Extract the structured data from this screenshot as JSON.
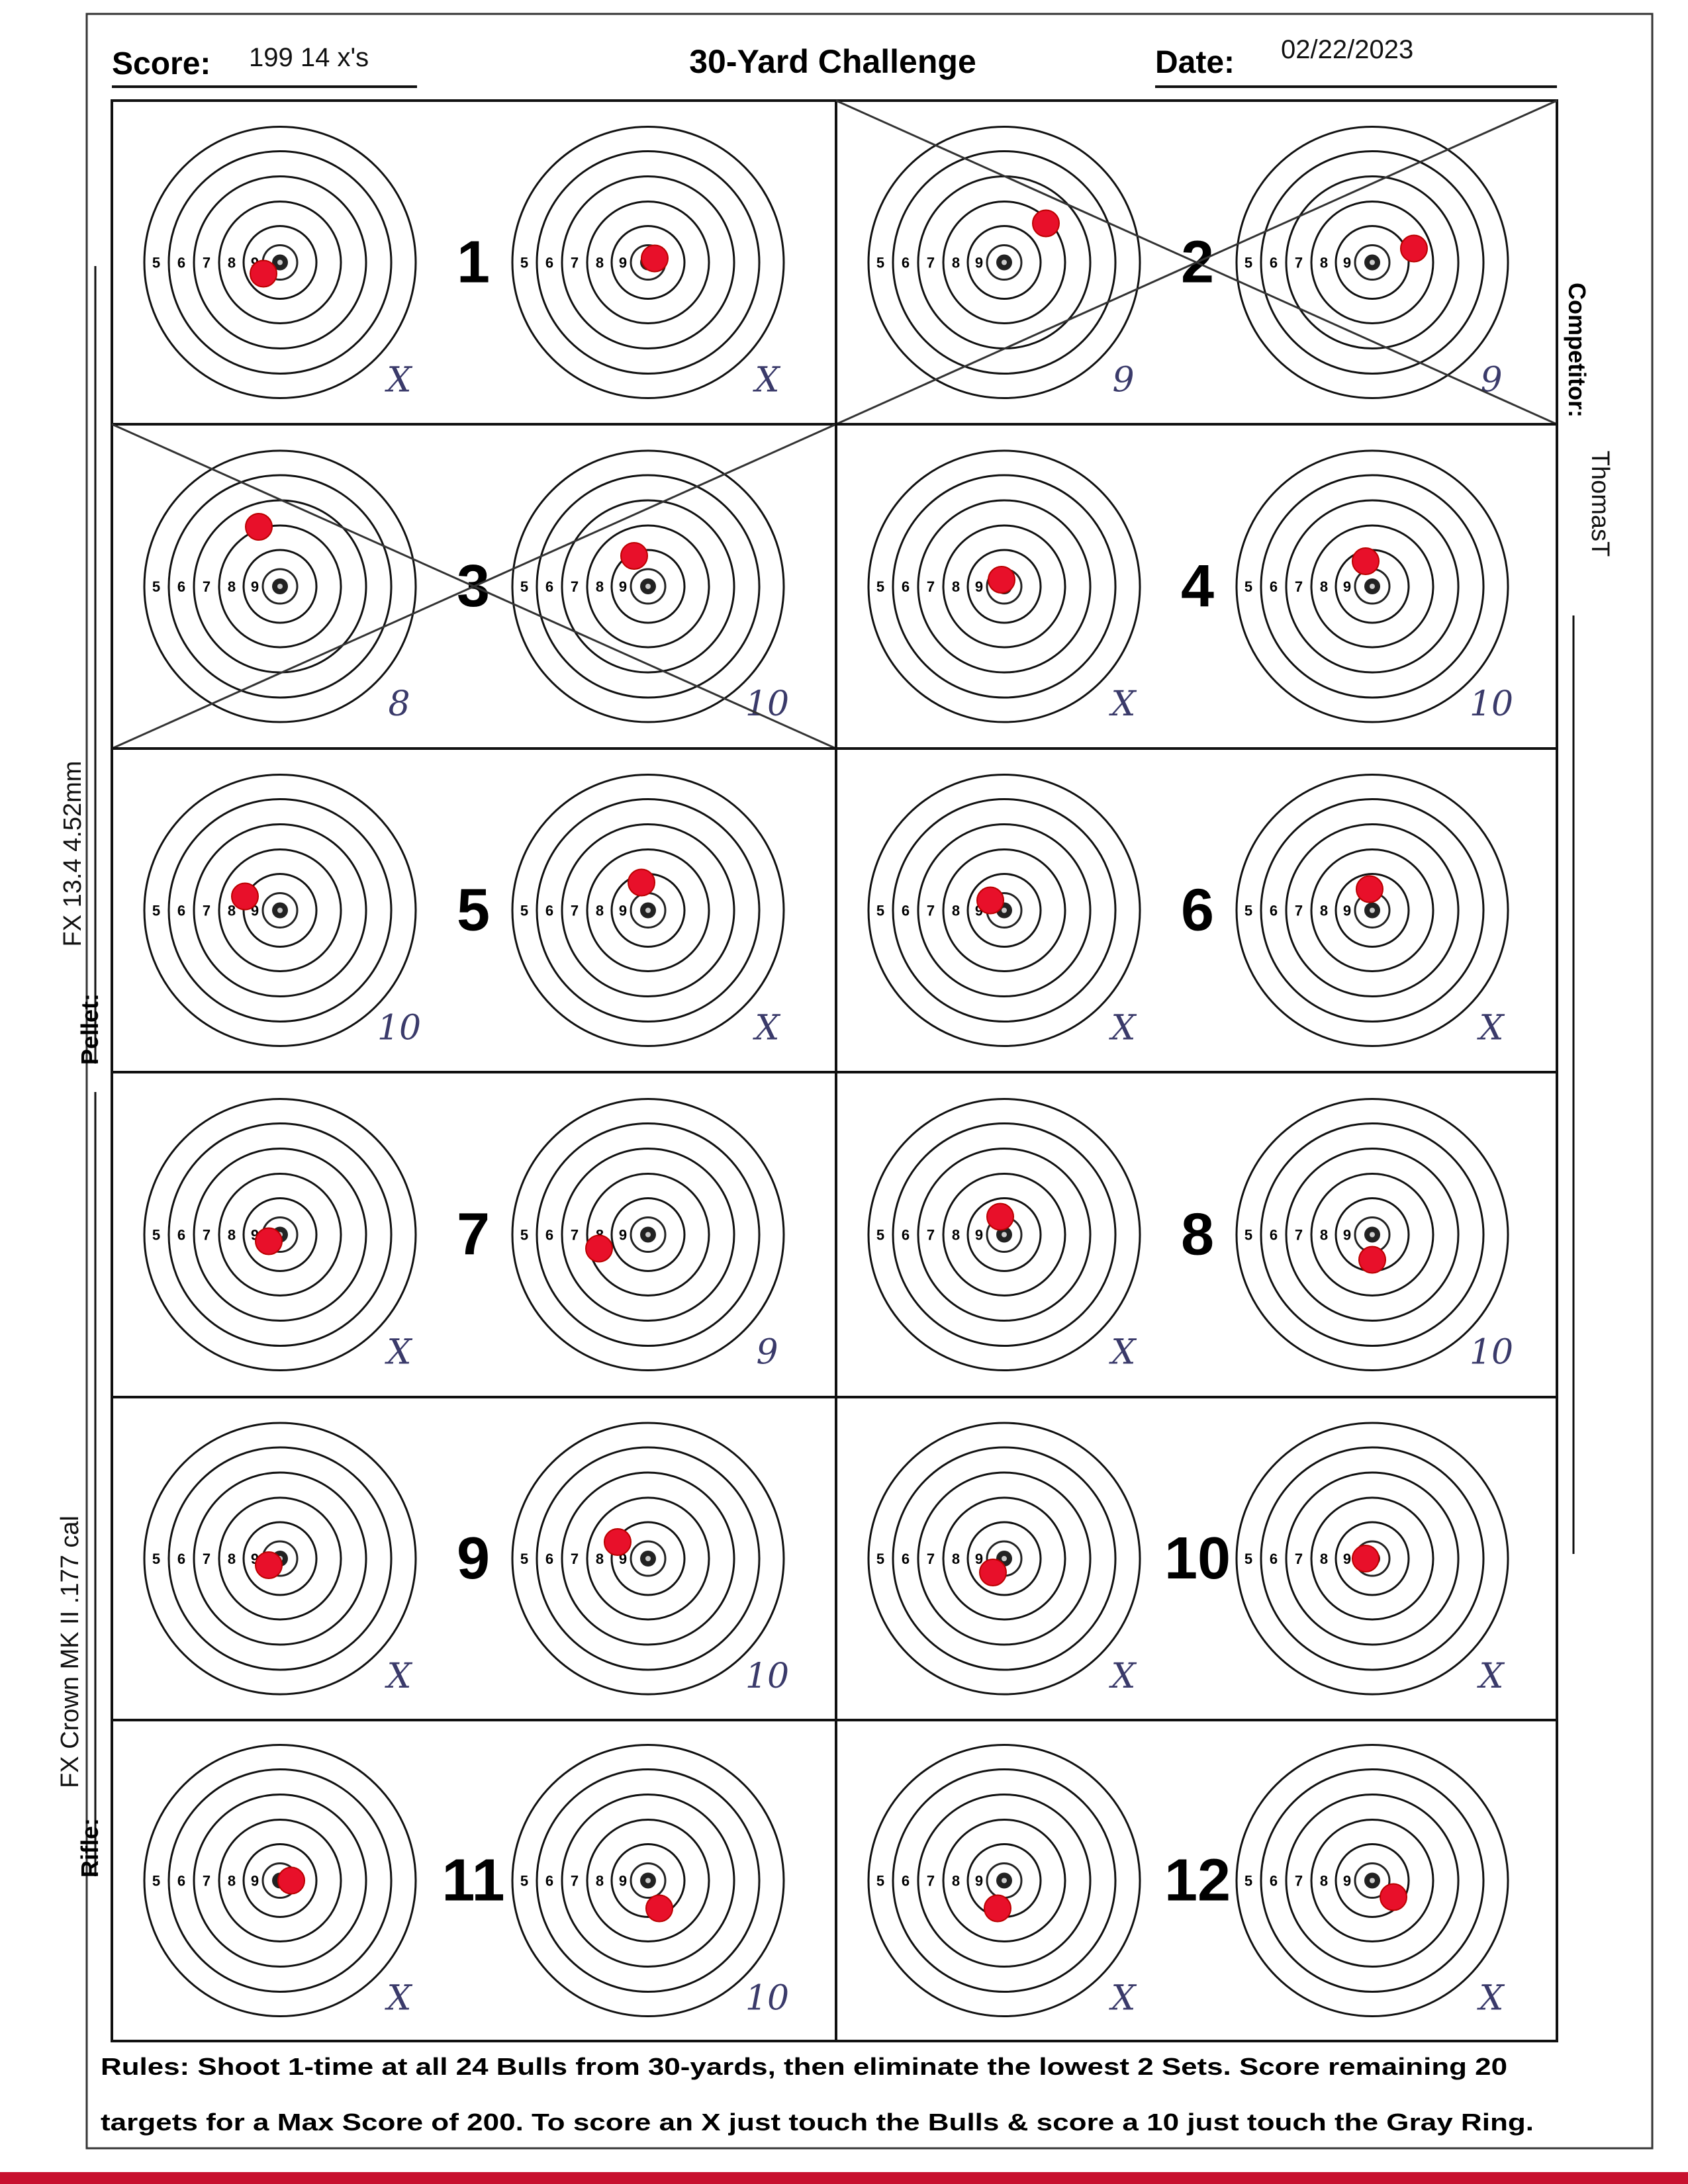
{
  "header": {
    "score_label": "Score:",
    "score": "199  14 x's",
    "title": "30-Yard Challenge",
    "date_label": "Date:",
    "date": "02/22/2023"
  },
  "sides": {
    "competitor_label": "Competitor:",
    "competitor": "ThomasT",
    "pellet_label": "Pellet:",
    "pellet": "FX 13.4  4.52mm",
    "rifle_label": "Rifle:",
    "rifle": "FX Crown MK II .177 cal"
  },
  "ring_labels": [
    "5",
    "6",
    "7",
    "8",
    "9"
  ],
  "sets": [
    {
      "number": "1",
      "scores": [
        "X",
        "X"
      ],
      "eliminated": false
    },
    {
      "number": "2",
      "scores": [
        "9",
        "9"
      ],
      "eliminated": true
    },
    {
      "number": "3",
      "scores": [
        "8",
        "10"
      ],
      "eliminated": true
    },
    {
      "number": "4",
      "scores": [
        "X",
        "10"
      ],
      "eliminated": false
    },
    {
      "number": "5",
      "scores": [
        "10",
        "X"
      ],
      "eliminated": false
    },
    {
      "number": "6",
      "scores": [
        "X",
        "X"
      ],
      "eliminated": false
    },
    {
      "number": "7",
      "scores": [
        "X",
        "9"
      ],
      "eliminated": false
    },
    {
      "number": "8",
      "scores": [
        "X",
        "10"
      ],
      "eliminated": false
    },
    {
      "number": "9",
      "scores": [
        "X",
        "10"
      ],
      "eliminated": false
    },
    {
      "number": "10",
      "scores": [
        "X",
        "X"
      ],
      "eliminated": false
    },
    {
      "number": "11",
      "scores": [
        "X",
        "10"
      ],
      "eliminated": false
    },
    {
      "number": "12",
      "scores": [
        "X",
        "X"
      ],
      "eliminated": false
    }
  ],
  "rules": [
    "Rules: Shoot 1-time at all 24 Bulls from 30-yards, then eliminate the lowest 2 Sets. Score remaining 20",
    "targets for a Max Score of 200. To score an X just touch the Bulls & score a 10 just touch the Gray Ring."
  ]
}
